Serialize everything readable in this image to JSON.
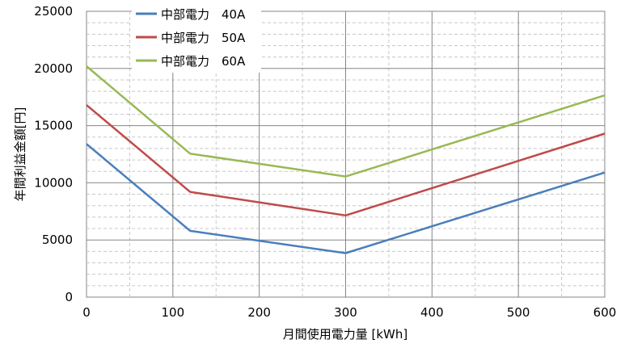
{
  "chart_data": {
    "type": "line",
    "title": "",
    "xlabel": "月間使用電力量 [kWh]",
    "ylabel": "年間利益金額[円]",
    "x": [
      0,
      120,
      300,
      600
    ],
    "xlim": [
      0,
      600
    ],
    "ylim": [
      0,
      25000
    ],
    "xticks": [
      0,
      100,
      200,
      300,
      400,
      500,
      600
    ],
    "yticks": [
      0,
      5000,
      10000,
      15000,
      20000,
      25000
    ],
    "grid": true,
    "legend_position": "top-center",
    "series": [
      {
        "name": "中部電力　40A",
        "color": "#4a7ebb",
        "values": [
          13400,
          5800,
          3850,
          10900
        ]
      },
      {
        "name": "中部電力　50A",
        "color": "#be4b48",
        "values": [
          16800,
          9200,
          7150,
          14300
        ]
      },
      {
        "name": "中部電力　60A",
        "color": "#98b954",
        "values": [
          20200,
          12550,
          10550,
          17650
        ]
      }
    ]
  }
}
